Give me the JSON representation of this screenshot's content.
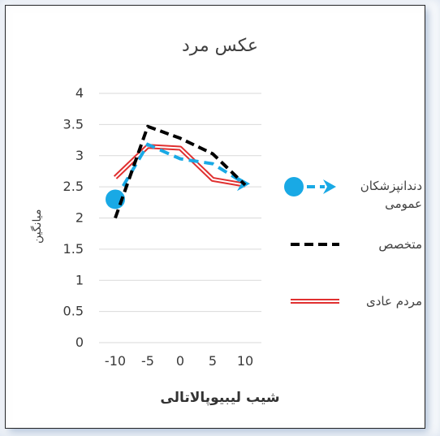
{
  "chart_data": {
    "type": "line",
    "title": "عکس مرد",
    "xlabel": "شیب لیبیوپالاتالی",
    "ylabel": "میانگین",
    "x": [
      -10,
      -5,
      0,
      5,
      10
    ],
    "ylim": [
      0,
      4
    ],
    "yticks": [
      "0",
      "0.5",
      "1",
      "1.5",
      "2",
      "2.5",
      "3",
      "3.5",
      "4"
    ],
    "xticks": [
      "-10",
      "-5",
      "0",
      "5",
      "10"
    ],
    "grid": true,
    "legend_position": "right",
    "series": [
      {
        "name": "دندانپزشکان عمومی",
        "values": [
          2.3,
          3.18,
          2.95,
          2.87,
          2.55
        ],
        "color": "#19a9e5",
        "style": "dashed-marker"
      },
      {
        "name": "متخصص",
        "values": [
          2.0,
          3.47,
          3.28,
          3.03,
          2.53
        ],
        "color": "#000000",
        "style": "dashed"
      },
      {
        "name": "مردم عادی",
        "values": [
          2.65,
          3.15,
          3.12,
          2.62,
          2.53
        ],
        "color": "#e03030",
        "style": "double"
      }
    ]
  }
}
